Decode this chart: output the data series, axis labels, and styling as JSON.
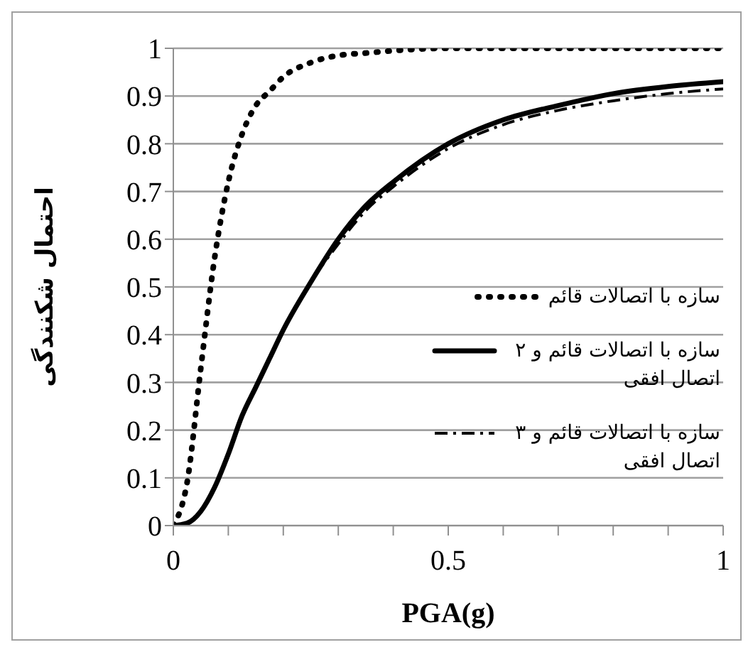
{
  "chart_data": {
    "type": "line",
    "xlabel": "PGA(g)",
    "ylabel": "احتمال شکنندگی",
    "x": [
      0,
      0.025,
      0.05,
      0.075,
      0.1,
      0.125,
      0.15,
      0.175,
      0.2,
      0.25,
      0.3,
      0.35,
      0.4,
      0.5,
      0.6,
      0.7,
      0.8,
      0.9,
      1
    ],
    "series": [
      {
        "name": "سازه با اتصالات قائم",
        "color": "#000000",
        "line_style": "dotted",
        "values": [
          0,
          0.09,
          0.33,
          0.56,
          0.72,
          0.82,
          0.88,
          0.91,
          0.94,
          0.97,
          0.985,
          0.99,
          0.995,
          1,
          1,
          1,
          1,
          1,
          1
        ]
      },
      {
        "name": "سازه با اتصالات قائم و ۲ اتصال افقی",
        "color": "#000000",
        "line_style": "solid",
        "values": [
          0,
          0.005,
          0.03,
          0.08,
          0.15,
          0.23,
          0.29,
          0.35,
          0.41,
          0.51,
          0.6,
          0.67,
          0.72,
          0.8,
          0.85,
          0.88,
          0.905,
          0.92,
          0.93
        ]
      },
      {
        "name": "سازه با اتصالات قائم و ۳ اتصال افقی",
        "color": "#000000",
        "line_style": "dashed",
        "values": [
          0,
          0.005,
          0.03,
          0.08,
          0.15,
          0.23,
          0.29,
          0.35,
          0.41,
          0.51,
          0.59,
          0.66,
          0.71,
          0.79,
          0.84,
          0.87,
          0.89,
          0.905,
          0.915
        ]
      }
    ],
    "xlim": [
      0,
      1
    ],
    "xticks": [
      0,
      {
        "value": 0.1,
        "label": null
      },
      {
        "value": 0.2,
        "label": null
      },
      {
        "value": 0.3,
        "label": null
      },
      {
        "value": 0.4,
        "label": null
      },
      0.5,
      {
        "value": 0.6,
        "label": null
      },
      {
        "value": 0.7,
        "label": null
      },
      {
        "value": 0.8,
        "label": null
      },
      {
        "value": 0.9,
        "label": null
      },
      1
    ],
    "ylim": [
      0,
      1
    ],
    "yticks": [
      0,
      0.1,
      0.2,
      0.3,
      0.4,
      0.5,
      0.6,
      0.7,
      0.8,
      0.9,
      1
    ],
    "grid": "y",
    "legend": "right",
    "marker": "none"
  }
}
